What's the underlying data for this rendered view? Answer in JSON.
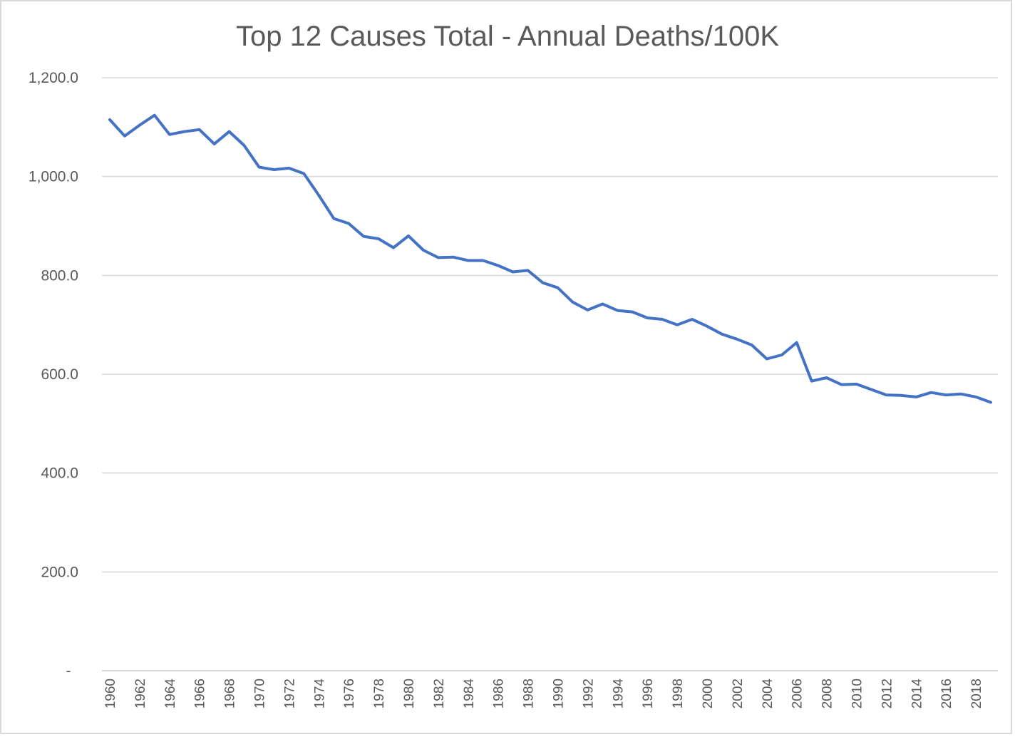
{
  "chart_data": {
    "type": "line",
    "title": "Top 12 Causes Total - Annual Deaths/100K",
    "xlabel": "",
    "ylabel": "",
    "ylim": [
      0,
      1200
    ],
    "xlim": [
      1960,
      2019
    ],
    "grid": true,
    "legend": "none",
    "y_ticks": [
      {
        "value": 0,
        "label": "-"
      },
      {
        "value": 200,
        "label": "200.0"
      },
      {
        "value": 400,
        "label": "400.0"
      },
      {
        "value": 600,
        "label": "600.0"
      },
      {
        "value": 800,
        "label": "800.0"
      },
      {
        "value": 1000,
        "label": "1,000.0"
      },
      {
        "value": 1200,
        "label": "1,200.0"
      }
    ],
    "x_tick_labels": [
      "1960",
      "1962",
      "1964",
      "1966",
      "1968",
      "1970",
      "1972",
      "1974",
      "1976",
      "1978",
      "1980",
      "1982",
      "1984",
      "1986",
      "1988",
      "1990",
      "1992",
      "1994",
      "1996",
      "1998",
      "2000",
      "2002",
      "2004",
      "2006",
      "2008",
      "2010",
      "2012",
      "2014",
      "2016",
      "2018"
    ],
    "series": [
      {
        "name": "Top 12 Causes Total",
        "color": "#4472C4",
        "x": [
          1960,
          1961,
          1962,
          1963,
          1964,
          1965,
          1966,
          1967,
          1968,
          1969,
          1970,
          1971,
          1972,
          1973,
          1974,
          1975,
          1976,
          1977,
          1978,
          1979,
          1980,
          1981,
          1982,
          1983,
          1984,
          1985,
          1986,
          1987,
          1988,
          1989,
          1990,
          1991,
          1992,
          1993,
          1994,
          1995,
          1996,
          1997,
          1998,
          1999,
          2000,
          2001,
          2002,
          2003,
          2004,
          2005,
          2006,
          2007,
          2008,
          2009,
          2010,
          2011,
          2012,
          2013,
          2014,
          2015,
          2016,
          2017,
          2018,
          2019
        ],
        "values": [
          1115,
          1082,
          1104,
          1124,
          1085,
          1091,
          1095,
          1066,
          1091,
          1063,
          1019,
          1014,
          1017,
          1006,
          962,
          915,
          905,
          879,
          874,
          856,
          880,
          851,
          836,
          837,
          830,
          830,
          820,
          807,
          810,
          785,
          775,
          746,
          730,
          742,
          729,
          726,
          714,
          711,
          700,
          711,
          697,
          681,
          671,
          659,
          631,
          639,
          664,
          586,
          593,
          579,
          580,
          569,
          558,
          557,
          554,
          563,
          558,
          560,
          554,
          543
        ]
      }
    ]
  }
}
